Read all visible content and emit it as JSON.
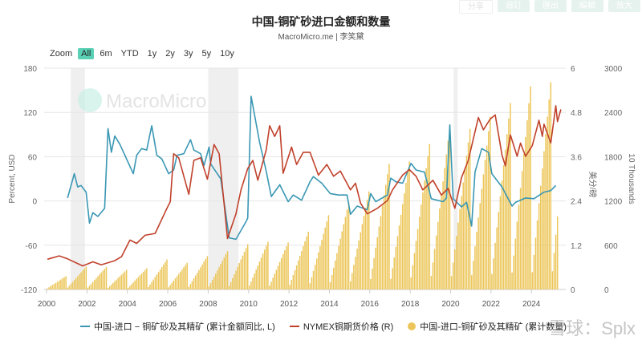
{
  "toolbar": {
    "buttons": [
      "分享",
      "自訂",
      "匯出",
      "編輯",
      "放大"
    ]
  },
  "header": {
    "title": "中国-铜矿砂进口金额和数量",
    "subtitle": "MacroMicro.me | 李笑黛"
  },
  "range_selector": {
    "label": "Zoom",
    "options": [
      "All",
      "6m",
      "YTD",
      "1y",
      "2y",
      "3y",
      "5y",
      "10y"
    ],
    "active": "All"
  },
  "watermarks": {
    "logo": "MacroMicro",
    "overlay": "雪球：Splx"
  },
  "colors": {
    "blue": "#3a97b4",
    "red": "#c0412b",
    "bar": "#ecc65a",
    "recession": "#efefef",
    "accent": "#5ad1b5"
  },
  "chart_data": {
    "type": "line+bar",
    "title": "中国-铜矿砂进口金额和数量",
    "xlim": [
      2000,
      2025.7
    ],
    "x_ticks": [
      "2000",
      "2002",
      "2004",
      "2006",
      "2008",
      "2010",
      "2012",
      "2014",
      "2016",
      "2018",
      "2020",
      "2022",
      "2024"
    ],
    "grid": true,
    "legend_placement": "bottom",
    "recessions": [
      [
        2001.2,
        2001.9
      ],
      [
        2008.0,
        2009.5
      ],
      [
        2020.15,
        2020.35
      ]
    ],
    "axes": {
      "left": {
        "label": "Percent, USD",
        "range": [
          -120,
          180
        ],
        "ticks": [
          "180",
          "120",
          "60",
          "0",
          "-60",
          "-120"
        ]
      },
      "right": {
        "label": "美分/磅",
        "range": [
          0,
          6
        ],
        "ticks": [
          "6",
          "4.8",
          "3.6",
          "2.4",
          "1.2",
          "0"
        ]
      },
      "right2": {
        "label": "10 Thousands",
        "range": [
          0,
          3000
        ],
        "ticks": [
          "3000",
          "2400",
          "1800",
          "1200",
          "600",
          "0"
        ]
      }
    },
    "series": [
      {
        "name": "中国-进口 − 铜矿砂及其精矿 (累计金额同比, L)",
        "axis": "left",
        "type": "line",
        "color": "#3a97b4",
        "points": [
          [
            "2001-01",
            4
          ],
          [
            "2001-05",
            37
          ],
          [
            "2001-07",
            19
          ],
          [
            "2001-09",
            21
          ],
          [
            "2001-12",
            12
          ],
          [
            "2002-02",
            -30
          ],
          [
            "2002-04",
            -16
          ],
          [
            "2002-07",
            -21
          ],
          [
            "2002-11",
            -10
          ],
          [
            "2003-01",
            98
          ],
          [
            "2003-03",
            66
          ],
          [
            "2003-05",
            88
          ],
          [
            "2003-08",
            77
          ],
          [
            "2004-01",
            52
          ],
          [
            "2004-04",
            37
          ],
          [
            "2004-06",
            62
          ],
          [
            "2004-09",
            71
          ],
          [
            "2004-12",
            69
          ],
          [
            "2005-03",
            102
          ],
          [
            "2005-06",
            62
          ],
          [
            "2005-09",
            57
          ],
          [
            "2006-01",
            37
          ],
          [
            "2006-04",
            42
          ],
          [
            "2006-06",
            62
          ],
          [
            "2006-10",
            64
          ],
          [
            "2007-02",
            83
          ],
          [
            "2007-04",
            69
          ],
          [
            "2007-08",
            64
          ],
          [
            "2007-10",
            48
          ],
          [
            "2008-01",
            73
          ],
          [
            "2008-02",
            50
          ],
          [
            "2008-08",
            30
          ],
          [
            "2009-01",
            -50
          ],
          [
            "2009-05",
            -52
          ],
          [
            "2009-11",
            -28
          ],
          [
            "2009-12",
            -23
          ],
          [
            "2010-02",
            142
          ],
          [
            "2010-07",
            80
          ],
          [
            "2010-11",
            40
          ],
          [
            "2011-02",
            6
          ],
          [
            "2011-07",
            22
          ],
          [
            "2011-12",
            -1
          ],
          [
            "2012-03",
            8
          ],
          [
            "2012-08",
            1
          ],
          [
            "2013-01",
            26
          ],
          [
            "2013-03",
            33
          ],
          [
            "2013-08",
            24
          ],
          [
            "2014-01",
            10
          ],
          [
            "2014-06",
            8
          ],
          [
            "2014-11",
            8
          ],
          [
            "2015-01",
            -18
          ],
          [
            "2015-05",
            -7
          ],
          [
            "2015-11",
            -12
          ],
          [
            "2016-01",
            10
          ],
          [
            "2016-04",
            -1
          ],
          [
            "2016-11",
            8
          ],
          [
            "2017-01",
            31
          ],
          [
            "2017-04",
            26
          ],
          [
            "2017-08",
            24
          ],
          [
            "2018-01",
            51
          ],
          [
            "2018-04",
            42
          ],
          [
            "2018-09",
            39
          ],
          [
            "2019-01",
            3
          ],
          [
            "2019-08",
            -1
          ],
          [
            "2019-10",
            4
          ],
          [
            "2019-12",
            103
          ],
          [
            "2020-02",
            3
          ],
          [
            "2020-07",
            -8
          ],
          [
            "2020-10",
            -2
          ],
          [
            "2021-01",
            -34
          ],
          [
            "2021-03",
            39
          ],
          [
            "2021-07",
            71
          ],
          [
            "2021-11",
            66
          ],
          [
            "2022-01",
            37
          ],
          [
            "2022-07",
            19
          ],
          [
            "2023-01",
            -7
          ],
          [
            "2023-03",
            -2
          ],
          [
            "2023-09",
            4
          ],
          [
            "2024-02",
            3
          ],
          [
            "2024-04",
            6
          ],
          [
            "2024-08",
            12
          ],
          [
            "2024-12",
            14
          ],
          [
            "2025-03",
            21
          ]
        ]
      },
      {
        "name": "NYMEX铜期货价格 (R)",
        "axis": "right",
        "type": "line",
        "color": "#c0412b",
        "points": [
          [
            "2000-01",
            0.82
          ],
          [
            "2000-08",
            0.91
          ],
          [
            "2001-01",
            0.83
          ],
          [
            "2001-10",
            0.64
          ],
          [
            "2002-04",
            0.75
          ],
          [
            "2002-09",
            0.67
          ],
          [
            "2003-05",
            0.78
          ],
          [
            "2003-09",
            0.89
          ],
          [
            "2004-02",
            1.34
          ],
          [
            "2004-06",
            1.25
          ],
          [
            "2004-11",
            1.47
          ],
          [
            "2005-05",
            1.52
          ],
          [
            "2005-12",
            2.2
          ],
          [
            "2006-02",
            2.38
          ],
          [
            "2006-04",
            3.68
          ],
          [
            "2006-07",
            3.57
          ],
          [
            "2007-01",
            2.58
          ],
          [
            "2007-04",
            3.5
          ],
          [
            "2007-08",
            3.57
          ],
          [
            "2007-12",
            2.99
          ],
          [
            "2008-04",
            3.93
          ],
          [
            "2008-07",
            3.68
          ],
          [
            "2008-12",
            1.38
          ],
          [
            "2009-05",
            2.05
          ],
          [
            "2009-08",
            2.7
          ],
          [
            "2009-12",
            3.28
          ],
          [
            "2010-01",
            3.35
          ],
          [
            "2010-03",
            3.5
          ],
          [
            "2010-06",
            2.96
          ],
          [
            "2010-11",
            3.79
          ],
          [
            "2011-01",
            4.44
          ],
          [
            "2011-04",
            4.15
          ],
          [
            "2011-07",
            4.44
          ],
          [
            "2011-09",
            3.15
          ],
          [
            "2012-02",
            3.86
          ],
          [
            "2012-05",
            3.39
          ],
          [
            "2012-09",
            3.72
          ],
          [
            "2013-01",
            3.72
          ],
          [
            "2013-06",
            3.1
          ],
          [
            "2013-11",
            3.39
          ],
          [
            "2014-03",
            3.07
          ],
          [
            "2014-07",
            3.21
          ],
          [
            "2015-01",
            2.7
          ],
          [
            "2015-04",
            2.88
          ],
          [
            "2015-07",
            2.34
          ],
          [
            "2015-11",
            2.05
          ],
          [
            "2016-05",
            2.2
          ],
          [
            "2016-11",
            2.41
          ],
          [
            "2017-02",
            2.7
          ],
          [
            "2017-08",
            3.1
          ],
          [
            "2017-12",
            3.25
          ],
          [
            "2018-04",
            3.07
          ],
          [
            "2018-08",
            2.7
          ],
          [
            "2019-02",
            2.96
          ],
          [
            "2019-07",
            2.56
          ],
          [
            "2019-11",
            2.74
          ],
          [
            "2020-03",
            2.2
          ],
          [
            "2020-07",
            3.03
          ],
          [
            "2020-11",
            3.5
          ],
          [
            "2021-02",
            4.08
          ],
          [
            "2021-05",
            4.66
          ],
          [
            "2021-08",
            4.33
          ],
          [
            "2021-12",
            4.62
          ],
          [
            "2022-03",
            4.73
          ],
          [
            "2022-07",
            3.65
          ],
          [
            "2022-09",
            3.35
          ],
          [
            "2022-12",
            4.19
          ],
          [
            "2023-04",
            3.61
          ],
          [
            "2023-06",
            3.97
          ],
          [
            "2023-09",
            3.61
          ],
          [
            "2024-01",
            3.9
          ],
          [
            "2024-05",
            4.59
          ],
          [
            "2024-07",
            4.15
          ],
          [
            "2024-08",
            4.48
          ],
          [
            "2024-12",
            3.97
          ],
          [
            "2025-03",
            4.98
          ],
          [
            "2025-04",
            4.55
          ],
          [
            "2025-06",
            4.88
          ]
        ]
      },
      {
        "name": "中国-进口-铜矿砂及其精矿 (累计数量)",
        "axis": "right2",
        "type": "bar",
        "color": "#ecc65a",
        "year_end_totals": {
          "2000": 181,
          "2001": 310,
          "2002": 307,
          "2003": 267,
          "2004": 289,
          "2005": 406,
          "2006": 362,
          "2007": 452,
          "2008": 520,
          "2009": 613,
          "2010": 647,
          "2011": 638,
          "2012": 783,
          "2013": 1007,
          "2014": 1181,
          "2015": 1329,
          "2016": 1704,
          "2017": 1735,
          "2018": 1972,
          "2019": 2199,
          "2020": 2176,
          "2021": 2340,
          "2022": 2527,
          "2023": 2754,
          "2024": 2811
        },
        "latest": {
          "period": "2025-04",
          "value": 990
        }
      }
    ]
  }
}
